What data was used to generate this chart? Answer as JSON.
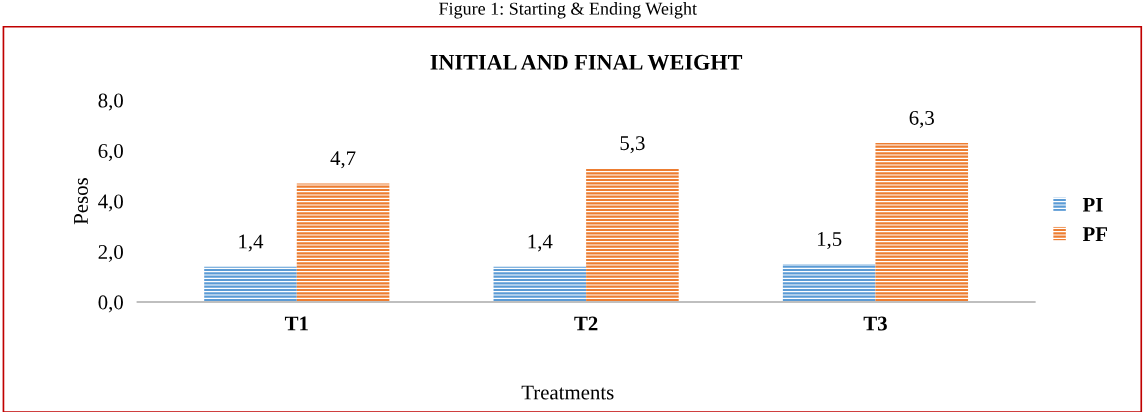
{
  "chart_data": {
    "type": "bar",
    "title": "INITIAL AND FINAL WEIGHT",
    "ylabel": "Pesos",
    "xlabel": "Treatments",
    "annotations": [
      "Figure 1: Starting & Ending Weight"
    ],
    "categories": [
      "T1",
      "T2",
      "T3"
    ],
    "series": [
      {
        "name": "PI",
        "color": "#5b9bd5",
        "values": [
          1.4,
          1.4,
          1.5
        ],
        "value_labels": [
          "1,4",
          "1,4",
          "1,5"
        ]
      },
      {
        "name": "PF",
        "color": "#ed7d31",
        "values": [
          4.7,
          5.3,
          6.3
        ],
        "value_labels": [
          "4,7",
          "5,3",
          "6,3"
        ]
      }
    ],
    "ylim": [
      0,
      8
    ],
    "yticks": [
      {
        "value": 0,
        "label": "0,0"
      },
      {
        "value": 2,
        "label": "2,0"
      },
      {
        "value": 4,
        "label": "4,0"
      },
      {
        "value": 6,
        "label": "6,0"
      },
      {
        "value": 8,
        "label": "8,0"
      }
    ],
    "grid": false,
    "legend": "right"
  }
}
